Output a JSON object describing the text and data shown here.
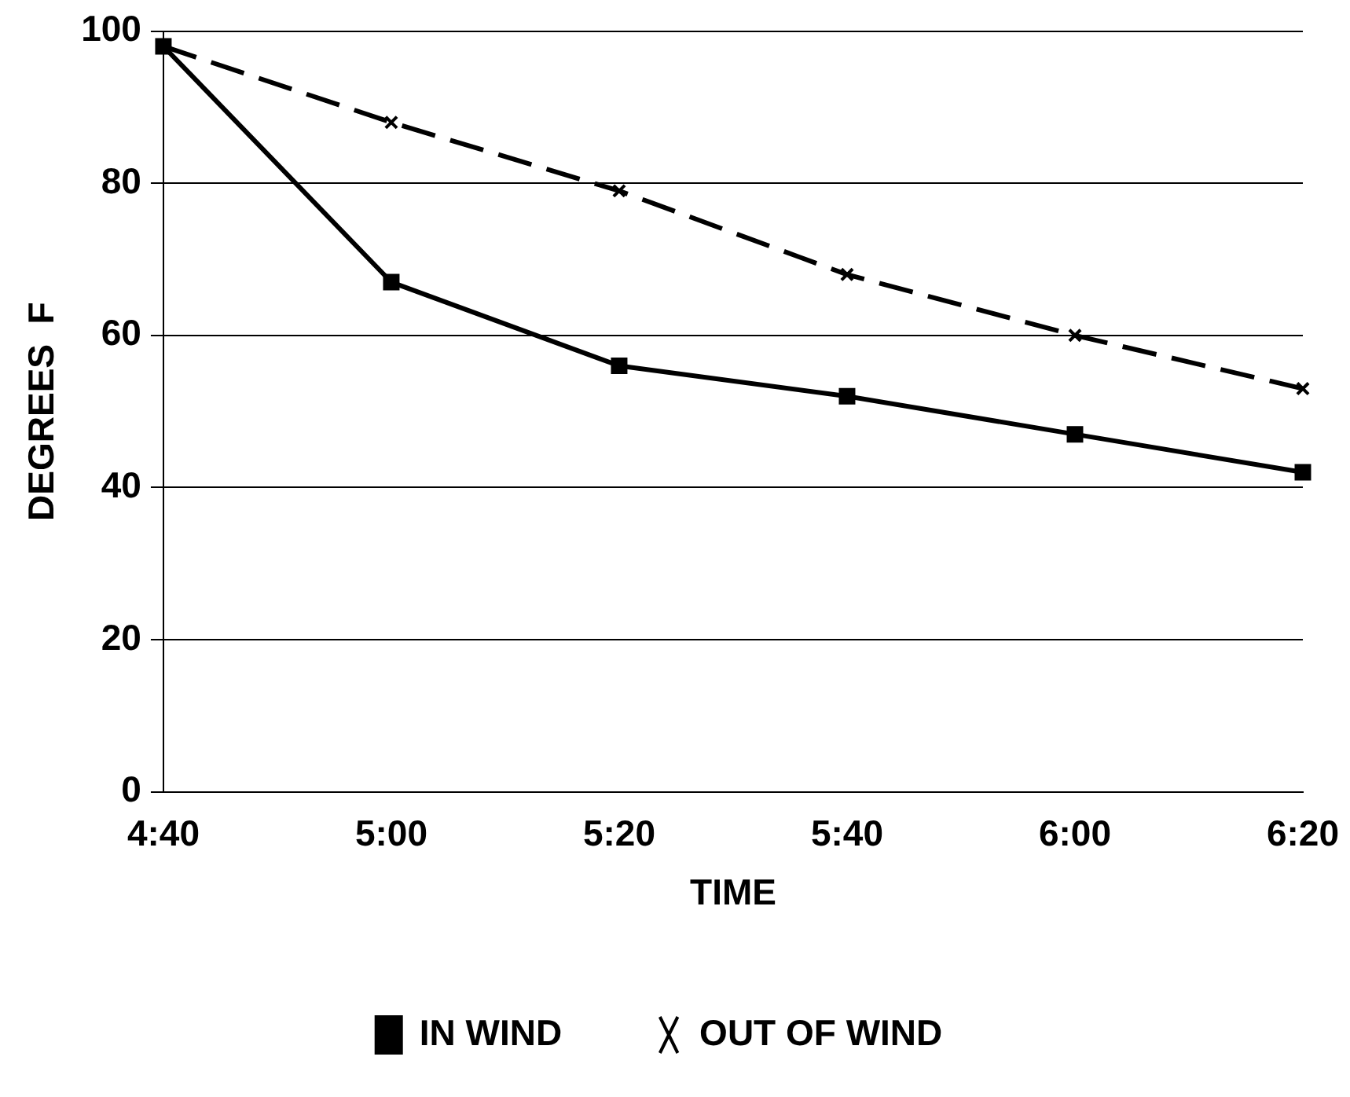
{
  "chart_data": {
    "type": "line",
    "xlabel": "TIME",
    "ylabel": "DEGREES  F",
    "categories": [
      "4:40",
      "5:00",
      "5:20",
      "5:40",
      "6:00",
      "6:20"
    ],
    "series": [
      {
        "name": "IN WIND",
        "color": "#000000",
        "marker": "square",
        "line_style": "solid",
        "values": [
          98,
          67,
          56,
          52,
          47,
          42
        ]
      },
      {
        "name": "OUT OF WIND",
        "color": "#000000",
        "marker": "cross",
        "line_style": "dashed",
        "values": [
          98,
          88,
          79,
          68,
          60,
          53
        ]
      }
    ],
    "ylim": [
      0,
      100
    ],
    "yticks": [
      0,
      20,
      40,
      60,
      80,
      100
    ],
    "grid": "y",
    "legend": "bottom"
  }
}
